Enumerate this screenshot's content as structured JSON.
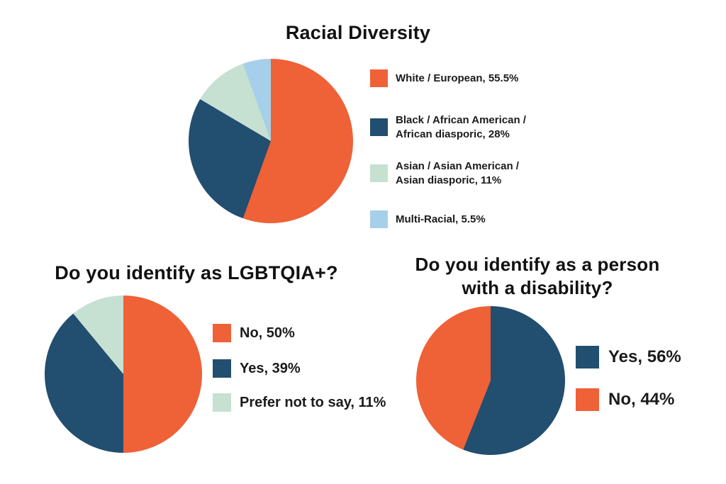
{
  "palette": {
    "orange": "#EF6137",
    "dark_blue": "#224E6F",
    "mint": "#C6E0D2",
    "light_blue": "#A6CFE9",
    "text": "#1B1B1B",
    "background": "#FFFFFF"
  },
  "chart_data": [
    {
      "type": "pie",
      "title": "Racial Diversity",
      "categories": [
        "White / European",
        "Black / African American / African diasporic",
        "Asian / Asian American / Asian diasporic",
        "Multi-Racial"
      ],
      "values": [
        55.5,
        28,
        11,
        5.5
      ],
      "unit": "%",
      "colors": [
        "#EF6137",
        "#224E6F",
        "#C6E0D2",
        "#A6CFE9"
      ],
      "start_angle_deg": 0,
      "direction": "clockwise",
      "legend_position": "right",
      "legend": [
        {
          "lines": [
            "White / European, 55.5%"
          ]
        },
        {
          "lines": [
            "Black / African American /",
            "African diasporic, 28%"
          ]
        },
        {
          "lines": [
            "Asian / Asian American /",
            "Asian diasporic, 11%"
          ]
        },
        {
          "lines": [
            "Multi-Racial, 5.5%"
          ]
        }
      ]
    },
    {
      "type": "pie",
      "title": "Do you identify as LGBTQIA+?",
      "categories": [
        "No",
        "Yes",
        "Prefer not to say"
      ],
      "values": [
        50,
        39,
        11
      ],
      "unit": "%",
      "colors": [
        "#EF6137",
        "#224E6F",
        "#C6E0D2"
      ],
      "start_angle_deg": 0,
      "direction": "clockwise",
      "legend_position": "right",
      "legend": [
        {
          "lines": [
            "No, 50%"
          ]
        },
        {
          "lines": [
            "Yes, 39%"
          ]
        },
        {
          "lines": [
            "Prefer not to say, 11%"
          ]
        }
      ]
    },
    {
      "type": "pie",
      "title": "Do you identify as a person with a disability?",
      "title_lines": [
        "Do you identify as a person",
        "with a disability?"
      ],
      "categories": [
        "Yes",
        "No"
      ],
      "values": [
        56,
        44
      ],
      "unit": "%",
      "colors": [
        "#224E6F",
        "#EF6137"
      ],
      "start_angle_deg": 0,
      "direction": "clockwise",
      "legend_position": "right",
      "legend": [
        {
          "lines": [
            "Yes, 56%"
          ]
        },
        {
          "lines": [
            "No, 44%"
          ]
        }
      ]
    }
  ]
}
